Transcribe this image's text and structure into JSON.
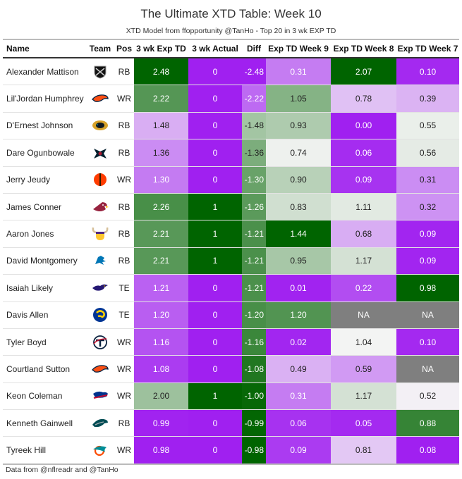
{
  "header": {
    "title": "The Ultimate XTD Table: Week 10",
    "subtitle": "XTD Model from ffopportunity @TanHo - Top 20 in 3 wk EXP TD"
  },
  "footer": {
    "source": "Data from @nflreadr and @TanHo"
  },
  "colors": {
    "green_dark": "#006400",
    "purple_bright": "#a020f0",
    "neutral": "#f5f5f5",
    "na": "#7f7f7f"
  },
  "chart_data": {
    "type": "table",
    "columns": [
      "Name",
      "Team",
      "Pos",
      "3 wk Exp TD",
      "3 wk Actual",
      "Diff",
      "Exp TD Week 9",
      "Exp TD Week 8",
      "Exp TD Week 7"
    ],
    "rows": [
      {
        "name": "Alexander Mattison",
        "team": "raiders",
        "pos": "RB",
        "exp3": "2.48",
        "act3": "0",
        "diff": "-2.48",
        "w9": "0.31",
        "w8": "2.07",
        "w7": "0.10"
      },
      {
        "name": "Lil'Jordan Humphrey",
        "team": "broncos",
        "pos": "WR",
        "exp3": "2.22",
        "act3": "0",
        "diff": "-2.22",
        "w9": "1.05",
        "w8": "0.78",
        "w7": "0.39"
      },
      {
        "name": "D'Ernest Johnson",
        "team": "jaguars",
        "pos": "RB",
        "exp3": "1.48",
        "act3": "0",
        "diff": "-1.48",
        "w9": "0.93",
        "w8": "0.00",
        "w7": "0.55"
      },
      {
        "name": "Dare Ogunbowale",
        "team": "texans",
        "pos": "RB",
        "exp3": "1.36",
        "act3": "0",
        "diff": "-1.36",
        "w9": "0.74",
        "w8": "0.06",
        "w7": "0.56"
      },
      {
        "name": "Jerry Jeudy",
        "team": "browns",
        "pos": "WR",
        "exp3": "1.30",
        "act3": "0",
        "diff": "-1.30",
        "w9": "0.90",
        "w8": "0.09",
        "w7": "0.31"
      },
      {
        "name": "James Conner",
        "team": "cardinals",
        "pos": "RB",
        "exp3": "2.26",
        "act3": "1",
        "diff": "-1.26",
        "w9": "0.83",
        "w8": "1.11",
        "w7": "0.32"
      },
      {
        "name": "Aaron Jones",
        "team": "vikings",
        "pos": "RB",
        "exp3": "2.21",
        "act3": "1",
        "diff": "-1.21",
        "w9": "1.44",
        "w8": "0.68",
        "w7": "0.09"
      },
      {
        "name": "David Montgomery",
        "team": "lions",
        "pos": "RB",
        "exp3": "2.21",
        "act3": "1",
        "diff": "-1.21",
        "w9": "0.95",
        "w8": "1.17",
        "w7": "0.09"
      },
      {
        "name": "Isaiah Likely",
        "team": "ravens",
        "pos": "TE",
        "exp3": "1.21",
        "act3": "0",
        "diff": "-1.21",
        "w9": "0.01",
        "w8": "0.22",
        "w7": "0.98"
      },
      {
        "name": "Davis Allen",
        "team": "rams",
        "pos": "TE",
        "exp3": "1.20",
        "act3": "0",
        "diff": "-1.20",
        "w9": "1.20",
        "w8": "NA",
        "w7": "NA"
      },
      {
        "name": "Tyler Boyd",
        "team": "titans",
        "pos": "WR",
        "exp3": "1.16",
        "act3": "0",
        "diff": "-1.16",
        "w9": "0.02",
        "w8": "1.04",
        "w7": "0.10"
      },
      {
        "name": "Courtland Sutton",
        "team": "broncos",
        "pos": "WR",
        "exp3": "1.08",
        "act3": "0",
        "diff": "-1.08",
        "w9": "0.49",
        "w8": "0.59",
        "w7": "NA"
      },
      {
        "name": "Keon Coleman",
        "team": "bills",
        "pos": "WR",
        "exp3": "2.00",
        "act3": "1",
        "diff": "-1.00",
        "w9": "0.31",
        "w8": "1.17",
        "w7": "0.52"
      },
      {
        "name": "Kenneth Gainwell",
        "team": "eagles",
        "pos": "RB",
        "exp3": "0.99",
        "act3": "0",
        "diff": "-0.99",
        "w9": "0.06",
        "w8": "0.05",
        "w7": "0.88"
      },
      {
        "name": "Tyreek Hill",
        "team": "dolphins",
        "pos": "WR",
        "exp3": "0.98",
        "act3": "0",
        "diff": "-0.98",
        "w9": "0.09",
        "w8": "0.81",
        "w7": "0.08"
      }
    ]
  }
}
